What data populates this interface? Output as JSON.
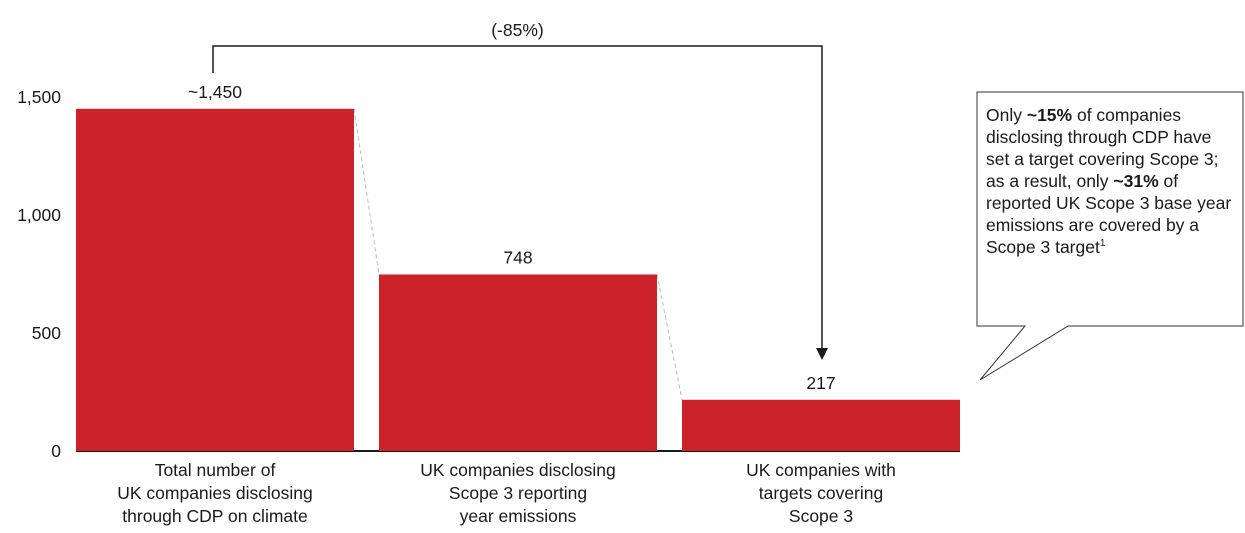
{
  "chart_data": {
    "type": "bar",
    "categories": [
      [
        "Total number of",
        "UK companies disclosing",
        "through CDP on climate"
      ],
      [
        "UK companies disclosing",
        "Scope 3 reporting",
        "year emissions"
      ],
      [
        "UK companies with",
        "targets covering",
        "Scope 3"
      ]
    ],
    "values": [
      1450,
      748,
      217
    ],
    "value_labels": [
      "~1,450",
      "748",
      "217"
    ],
    "y_ticks": [
      0,
      500,
      1000,
      1500
    ],
    "y_tick_labels": [
      "0",
      "500",
      "1,000",
      "1,500"
    ],
    "ylim": [
      0,
      1620
    ],
    "bar_color": "#cc2229",
    "grid": false,
    "annotation": {
      "label": "(-85%)",
      "from": 0,
      "to": 2
    }
  },
  "callout": {
    "segments": [
      {
        "text": "Only ",
        "bold": false
      },
      {
        "text": "~15%",
        "bold": true
      },
      {
        "text": " of companies disclosing through CDP have set a target covering Scope 3; as a result, only ",
        "bold": false
      },
      {
        "text": "~31%",
        "bold": true
      },
      {
        "text": " of reported UK Scope 3 base year emissions are covered by a Scope 3 target",
        "bold": false
      },
      {
        "text": "1",
        "bold": false,
        "superscript": true
      }
    ]
  }
}
